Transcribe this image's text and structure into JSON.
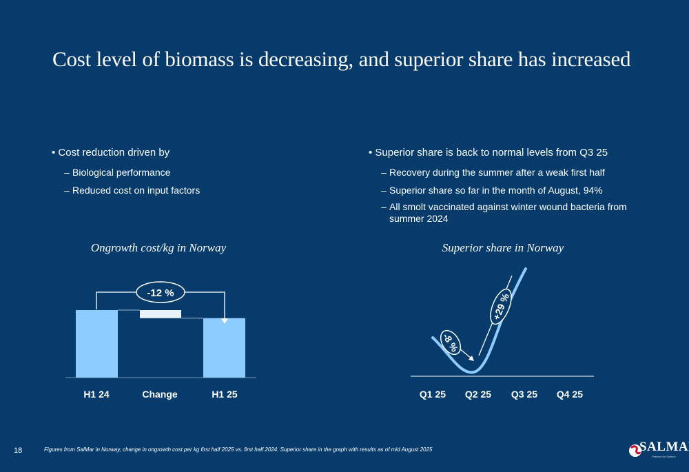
{
  "title": "Cost level of biomass is decreasing, and superior share has increased",
  "left_bullets": {
    "main": "Cost reduction driven by",
    "subs": [
      "Biological performance",
      "Reduced cost on input factors"
    ]
  },
  "right_bullets": {
    "main": "Superior share is back to normal levels from Q3 25",
    "subs": [
      "Recovery during the summer after a weak first half",
      "Superior share so far in the month of August, 94%",
      "All smolt vaccinated against winter wound bacteria from summer 2024"
    ]
  },
  "colors": {
    "background": "#063b6b",
    "bar": "#8ecbff",
    "change_bar": "#e8f3fc",
    "line": "#8ecbff"
  },
  "chart_data": [
    {
      "type": "bar",
      "title": "Ongrowth cost/kg in Norway",
      "categories": [
        "H1 24",
        "Change",
        "H1 25"
      ],
      "values": [
        100,
        -12,
        88
      ],
      "annotation": "-12 %"
    },
    {
      "type": "line",
      "title": "Superior share in Norway",
      "categories": [
        "Q1 25",
        "Q2 25",
        "Q3 25",
        "Q4 25"
      ],
      "annotations": [
        "-8 %",
        "+29 %"
      ]
    }
  ],
  "footer": {
    "page_number": "18",
    "note": "Figures from SalMar in Norway, change in ongrowth cost per kg first half 2025 vs. first half 2024. Superior share in the graph with results as of mid August  2025"
  },
  "logo": {
    "text": "SALMAR",
    "tagline": "Passion for Salmon"
  }
}
